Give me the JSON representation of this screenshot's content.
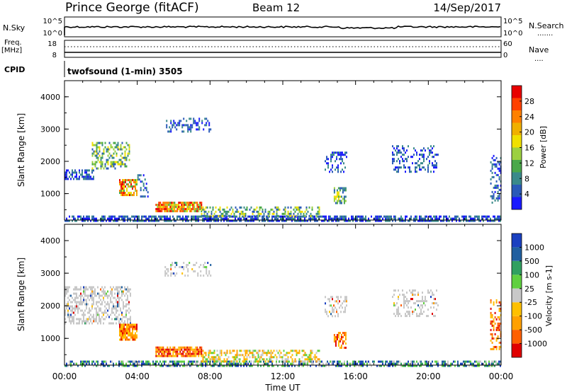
{
  "header": {
    "station": "Prince George (fitACF)",
    "beam": "Beam 12",
    "date": "14/Sep/2017"
  },
  "status_panels": {
    "noise": {
      "left_label": "N.Sky",
      "left_ticks": [
        "10^5",
        "10^0"
      ],
      "right_ticks": [
        "10^5",
        "10^0"
      ],
      "right_label": "N.Search",
      "right_line": "......."
    },
    "freq": {
      "left_label_1": "Freq.",
      "left_label_2": "[MHz]",
      "left_ticks": [
        "18",
        "8"
      ],
      "right_ticks": [
        "60",
        "0"
      ],
      "right_label": "Nave",
      "right_line": "...."
    },
    "cpid": {
      "left_label": "CPID",
      "text": "twofsound (1-min) 3505"
    }
  },
  "x_axis": {
    "ticks": [
      "00:00",
      "04:00",
      "08:00",
      "12:00",
      "16:00",
      "20:00",
      "00:00"
    ],
    "label": "Time UT"
  },
  "chart_data": [
    {
      "type": "heatmap",
      "panel": "power",
      "ylabel": "Slant Range [km]",
      "yticks": [
        "1000",
        "2000",
        "3000",
        "4000"
      ],
      "ylim": [
        180,
        4500
      ],
      "xlim_hours": [
        0,
        24
      ],
      "colorbar": {
        "label": "Power [dB]",
        "ticks": [
          "4",
          "8",
          "12",
          "16",
          "20",
          "24",
          "28"
        ],
        "colors": [
          "#1a1aff",
          "#2a5ab8",
          "#3a8a8a",
          "#4aa84a",
          "#9cd040",
          "#f0e000",
          "#f0b000",
          "#ff8000",
          "#ff4000",
          "#e80000"
        ]
      },
      "regions": [
        {
          "t0": 0.0,
          "t1": 24.0,
          "r0": 180,
          "r1": 320,
          "level": "low",
          "density": 0.7
        },
        {
          "t0": 0.0,
          "t1": 1.6,
          "r0": 1450,
          "r1": 1750,
          "level": "low",
          "density": 0.6
        },
        {
          "t0": 1.5,
          "t1": 3.6,
          "r0": 1750,
          "r1": 2600,
          "level": "mid",
          "density": 0.45
        },
        {
          "t0": 3.0,
          "t1": 4.0,
          "r0": 950,
          "r1": 1450,
          "level": "high",
          "density": 0.8
        },
        {
          "t0": 4.0,
          "t1": 4.6,
          "r0": 900,
          "r1": 1600,
          "level": "low",
          "density": 0.25
        },
        {
          "t0": 5.0,
          "t1": 7.5,
          "r0": 450,
          "r1": 750,
          "level": "high",
          "density": 0.85
        },
        {
          "t0": 7.5,
          "t1": 14.0,
          "r0": 300,
          "r1": 600,
          "level": "mid",
          "density": 0.45
        },
        {
          "t0": 5.5,
          "t1": 8.0,
          "r0": 2900,
          "r1": 3350,
          "level": "low",
          "density": 0.25
        },
        {
          "t0": 14.3,
          "t1": 15.5,
          "r0": 1700,
          "r1": 2300,
          "level": "low",
          "density": 0.35
        },
        {
          "t0": 14.8,
          "t1": 15.5,
          "r0": 700,
          "r1": 1200,
          "level": "mid",
          "density": 0.6
        },
        {
          "t0": 18.0,
          "t1": 20.5,
          "r0": 1700,
          "r1": 2500,
          "level": "low",
          "density": 0.3
        },
        {
          "t0": 23.4,
          "t1": 24.0,
          "r0": 700,
          "r1": 2200,
          "level": "low",
          "density": 0.35
        }
      ]
    },
    {
      "type": "heatmap",
      "panel": "velocity",
      "ylabel": "Slant Range [km]",
      "yticks": [
        "1000",
        "2000",
        "3000",
        "4000"
      ],
      "ylim": [
        180,
        4500
      ],
      "xlim_hours": [
        0,
        24
      ],
      "colorbar": {
        "label": "Velocity [m s-1]",
        "ticks": [
          "-1000",
          "-500",
          "-100",
          "-25",
          "25",
          "100",
          "500",
          "1000"
        ],
        "colors": [
          "#e00000",
          "#ff6000",
          "#ffa000",
          "#ffc000",
          "#c8c8c8",
          "#60d040",
          "#30a060",
          "#2060a0",
          "#1a40c0"
        ]
      },
      "regions": [
        {
          "t0": 0.0,
          "t1": 24.0,
          "r0": 180,
          "r1": 320,
          "level": "pos",
          "density": 0.6
        },
        {
          "t0": 0.0,
          "t1": 3.6,
          "r0": 1450,
          "r1": 2600,
          "level": "gray",
          "density": 0.5
        },
        {
          "t0": 3.0,
          "t1": 4.0,
          "r0": 950,
          "r1": 1450,
          "level": "neg",
          "density": 0.8
        },
        {
          "t0": 5.0,
          "t1": 7.5,
          "r0": 450,
          "r1": 750,
          "level": "neg",
          "density": 0.85
        },
        {
          "t0": 7.5,
          "t1": 14.0,
          "r0": 300,
          "r1": 650,
          "level": "mix",
          "density": 0.5
        },
        {
          "t0": 5.5,
          "t1": 8.0,
          "r0": 2900,
          "r1": 3350,
          "level": "gray",
          "density": 0.25
        },
        {
          "t0": 14.3,
          "t1": 15.5,
          "r0": 1700,
          "r1": 2300,
          "level": "gray",
          "density": 0.35
        },
        {
          "t0": 14.8,
          "t1": 15.5,
          "r0": 700,
          "r1": 1200,
          "level": "neg",
          "density": 0.6
        },
        {
          "t0": 18.0,
          "t1": 20.5,
          "r0": 1700,
          "r1": 2500,
          "level": "gray",
          "density": 0.3
        },
        {
          "t0": 23.4,
          "t1": 24.0,
          "r0": 700,
          "r1": 2200,
          "level": "neg",
          "density": 0.35
        }
      ]
    }
  ]
}
